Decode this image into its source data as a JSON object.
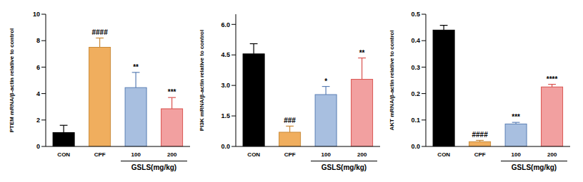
{
  "chart_data": [
    {
      "type": "bar",
      "ylabel": "PTEM mRNA/β-actin relative to control",
      "categories": [
        "CON",
        "CPF",
        "100",
        "200"
      ],
      "values": [
        1.05,
        7.5,
        4.45,
        2.85
      ],
      "errors": [
        0.55,
        0.7,
        1.15,
        0.85
      ],
      "significance": [
        null,
        "####",
        "**",
        "***"
      ],
      "colors": [
        "#000000",
        "#F0AE5E",
        "#A8BFE0",
        "#F2A0A0"
      ],
      "ylim": [
        0,
        10
      ],
      "yticks": [
        0,
        2,
        4,
        6,
        8,
        10
      ],
      "group_label": "GSLS(mg/kg)"
    },
    {
      "type": "bar",
      "ylabel": "PI3K mRNA/β-actin relative to control",
      "categories": [
        "CON",
        "CPF",
        "100",
        "200"
      ],
      "values": [
        4.55,
        0.7,
        2.55,
        3.3
      ],
      "errors": [
        0.5,
        0.3,
        0.4,
        1.05
      ],
      "significance": [
        null,
        "###",
        "*",
        "**"
      ],
      "colors": [
        "#000000",
        "#F0AE5E",
        "#A8BFE0",
        "#F2A0A0"
      ],
      "ylim": [
        0,
        6.5
      ],
      "yticks": [
        {
          "value": 0,
          "label": "0.0"
        },
        1.5,
        {
          "value": 3,
          "label": "3.0"
        },
        4.5,
        {
          "value": 6,
          "label": "6.0"
        }
      ],
      "group_label": "GSLS(mg/kg)"
    },
    {
      "type": "bar",
      "ylabel": "AKT mRNA/β-actin relative to control",
      "categories": [
        "CON",
        "CPF",
        "100",
        "200"
      ],
      "values": [
        0.44,
        0.018,
        0.085,
        0.225
      ],
      "errors": [
        0.018,
        0.005,
        0.006,
        0.01
      ],
      "significance": [
        null,
        "####",
        "***",
        "****"
      ],
      "colors": [
        "#000000",
        "#F0AE5E",
        "#A8BFE0",
        "#F2A0A0"
      ],
      "ylim": [
        0,
        0.5
      ],
      "yticks": [
        {
          "value": 0,
          "label": "0.0"
        },
        0.1,
        0.2,
        0.3,
        0.4,
        0.5
      ],
      "group_label": "GSLS(mg/kg)"
    }
  ]
}
